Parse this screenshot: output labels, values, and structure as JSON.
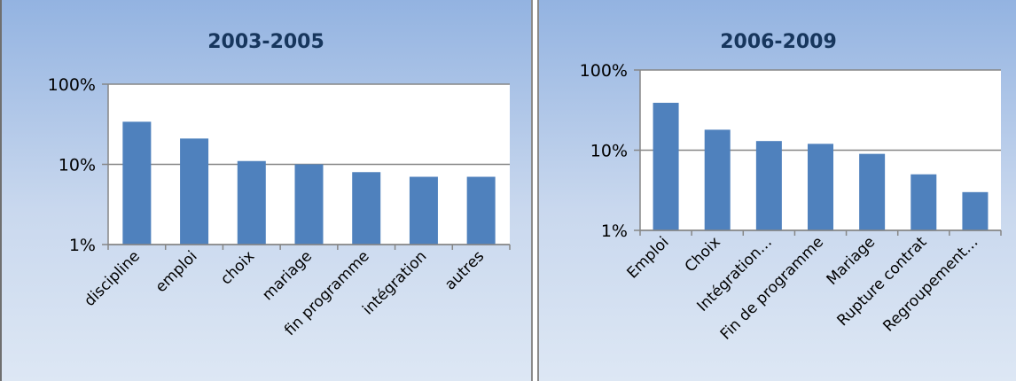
{
  "colors": {
    "bar": "#4f81bd",
    "plot_bg": "#ffffff",
    "grid": "#868686",
    "title": "#17365d"
  },
  "chart_data": [
    {
      "type": "bar",
      "title": "2003-2005",
      "scale": "log",
      "ylim": [
        1,
        100
      ],
      "yticks": [
        "1%",
        "10%",
        "100%"
      ],
      "categories": [
        "discipline",
        "emploi",
        "choix",
        "mariage",
        "fin programme",
        "intégration",
        "autres"
      ],
      "values": [
        34,
        21,
        11,
        10,
        8,
        7,
        7
      ],
      "grid": true
    },
    {
      "type": "bar",
      "title": "2006-2009",
      "scale": "log",
      "ylim": [
        1,
        100
      ],
      "yticks": [
        "1%",
        "10%",
        "100%"
      ],
      "categories": [
        "Emploi",
        "Choix",
        "Intégration…",
        "Fin de programme",
        "Mariage",
        "Rupture contrat",
        "Regroupement…"
      ],
      "values": [
        39,
        18,
        13,
        12,
        9,
        5,
        3
      ],
      "grid": true
    }
  ]
}
